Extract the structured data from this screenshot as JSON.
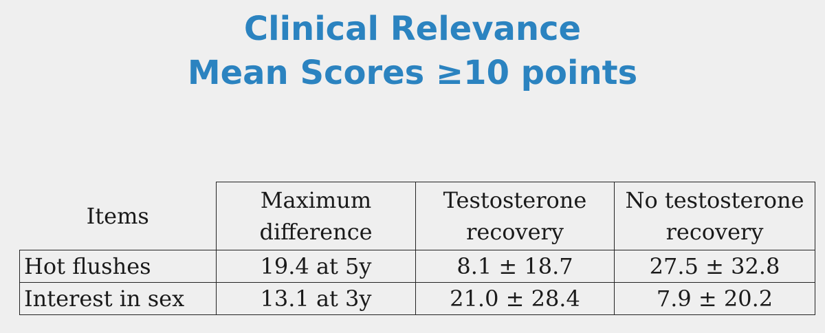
{
  "title": {
    "line1": "Clinical Relevance",
    "line2": "Mean Scores ≥10 points"
  },
  "table": {
    "headers": [
      [
        "Items"
      ],
      [
        "Maximum",
        "difference"
      ],
      [
        "Testosterone",
        "recovery"
      ],
      [
        "No testosterone",
        "recovery"
      ]
    ],
    "rows": [
      [
        "Hot flushes",
        "19.4 at 5y",
        "8.1 ± 18.7",
        "27.5 ± 32.8"
      ],
      [
        "Interest in sex",
        "13.1 at 3y",
        "21.0 ± 28.4",
        "7.9 ± 20.2"
      ]
    ]
  },
  "colors": {
    "background": "#efefef",
    "title": "#2b83c0",
    "text": "#1a1a1a",
    "border": "#222222"
  }
}
